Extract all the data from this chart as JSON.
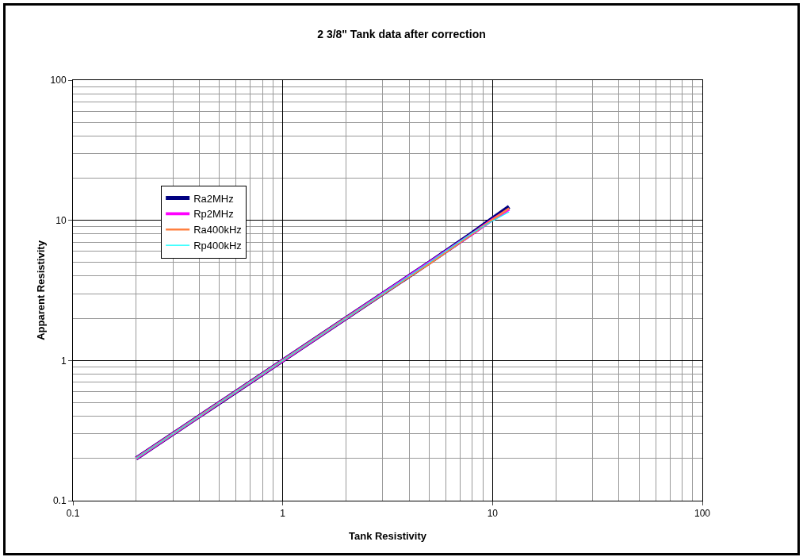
{
  "chart_data": {
    "type": "line",
    "title": "2 3/8\" Tank data after correction",
    "xlabel": "Tank Resistivity",
    "ylabel": "Apparent Resistivity",
    "log": "xy",
    "grid": true,
    "legend": "left",
    "marker": "none",
    "line_style": "solid",
    "xlim": [
      0.1,
      100
    ],
    "ylim": [
      0.1,
      100
    ],
    "xticks": [
      0.1,
      1,
      10,
      100
    ],
    "yticks": [
      0.1,
      1,
      10,
      100
    ],
    "x": [
      0.2,
      0.5,
      1,
      2,
      5,
      8,
      10,
      12
    ],
    "series": [
      {
        "name": "Ra2MHz",
        "color": "#000080",
        "values": [
          0.2,
          0.5,
          1,
          2,
          5,
          8.1,
          10.3,
          12.5
        ]
      },
      {
        "name": "Rp2MHz",
        "color": "#ff00ff",
        "values": [
          0.2,
          0.5,
          1,
          2,
          5,
          8,
          10.1,
          12
        ]
      },
      {
        "name": "Ra400kHz",
        "color": "#ff8040",
        "values": [
          0.2,
          0.5,
          1,
          2,
          4.9,
          8,
          10.1,
          12.2
        ]
      },
      {
        "name": "Rp400kHz",
        "color": "#00ffff",
        "values": [
          0.2,
          0.5,
          1,
          2,
          5,
          8.1,
          9.9,
          11.5
        ]
      }
    ]
  }
}
